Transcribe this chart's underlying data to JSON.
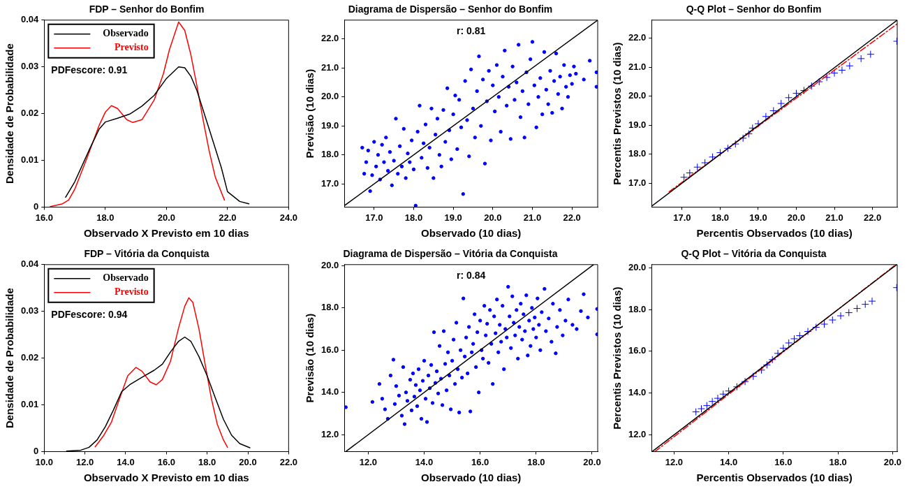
{
  "chart_data": [
    {
      "type": "line",
      "title": "FDP – Senhor do Bonfim",
      "xlabel": "Observado X Previsto em 10 dias",
      "ylabel": "Densidade de Probabilidade",
      "xlim": [
        16,
        24
      ],
      "xticks": [
        {
          "value": 16,
          "label": "16.0"
        },
        {
          "value": 18,
          "label": "18.0"
        },
        {
          "value": 20,
          "label": "20.0"
        },
        {
          "value": 22,
          "label": "22.0"
        },
        {
          "value": 24,
          "label": "24.0"
        }
      ],
      "ylim": [
        0,
        0.04
      ],
      "yticks": [
        0,
        0.01,
        0.02,
        0.03,
        0.04
      ],
      "legend": "top left",
      "annotations": [
        "PDFescore: 0.91"
      ],
      "series": [
        {
          "name": "Observado",
          "color": "#000000",
          "x": [
            16.7,
            17.0,
            17.5,
            17.8,
            18.0,
            18.4,
            18.8,
            19.2,
            19.6,
            20.0,
            20.4,
            20.6,
            20.8,
            21.0,
            21.4,
            21.8,
            22.0,
            22.4,
            22.7
          ],
          "values": [
            0.0021,
            0.0054,
            0.0126,
            0.0167,
            0.0182,
            0.019,
            0.0199,
            0.0216,
            0.0239,
            0.0275,
            0.03,
            0.0298,
            0.028,
            0.0249,
            0.0167,
            0.0084,
            0.0033,
            0.0012,
            0.0007
          ]
        },
        {
          "name": "Previsto",
          "color": "#ff0000",
          "x": [
            16.2,
            16.6,
            16.8,
            17.0,
            17.4,
            17.8,
            18.0,
            18.2,
            18.4,
            18.7,
            18.9,
            19.2,
            19.6,
            19.9,
            20.1,
            20.4,
            20.6,
            20.8,
            21.0,
            21.2,
            21.4,
            21.6,
            21.9
          ],
          "values": [
            0.0001,
            0.0007,
            0.0015,
            0.0038,
            0.0105,
            0.0175,
            0.0203,
            0.0217,
            0.0211,
            0.0187,
            0.0181,
            0.0187,
            0.0229,
            0.0285,
            0.0337,
            0.0396,
            0.0378,
            0.0326,
            0.0259,
            0.0187,
            0.012,
            0.0064,
            0.0015
          ]
        }
      ]
    },
    {
      "type": "scatter",
      "title": "Diagrama de Dispersão – Senhor do Bonfim",
      "xlabel": "Observado (10 dias)",
      "ylabel": "Previsão (10 dias)",
      "xlim": [
        16.25,
        22.65
      ],
      "xticks": [
        {
          "value": 17,
          "label": "17.0"
        },
        {
          "value": 18,
          "label": "18.0"
        },
        {
          "value": 19,
          "label": "19.0"
        },
        {
          "value": 20,
          "label": "20.0"
        },
        {
          "value": 21,
          "label": "21.0"
        },
        {
          "value": 22,
          "label": "22.0"
        }
      ],
      "ylim": [
        16.2,
        22.65
      ],
      "yticks": [
        {
          "value": 17,
          "label": "17.0"
        },
        {
          "value": 18,
          "label": "18.0"
        },
        {
          "value": 19,
          "label": "19.0"
        },
        {
          "value": 20,
          "label": "20.0"
        },
        {
          "value": 21,
          "label": "21.0"
        },
        {
          "value": 22,
          "label": "22.0"
        }
      ],
      "annotations": [
        "r: 0.81"
      ],
      "series": [
        {
          "marker": "circle",
          "color": "#0000ff",
          "x": [
            16.7,
            16.75,
            16.8,
            16.85,
            16.9,
            16.95,
            17.0,
            17.05,
            17.1,
            17.15,
            17.2,
            17.25,
            17.3,
            17.35,
            17.4,
            17.45,
            17.5,
            17.55,
            17.6,
            17.65,
            17.7,
            17.75,
            17.8,
            17.85,
            17.9,
            17.95,
            18.0,
            18.05,
            18.1,
            18.15,
            18.2,
            18.25,
            18.3,
            18.35,
            18.4,
            18.45,
            18.5,
            18.55,
            18.6,
            18.65,
            18.7,
            18.75,
            18.8,
            18.85,
            18.9,
            18.95,
            19.0,
            19.05,
            19.1,
            19.15,
            19.2,
            19.25,
            19.3,
            19.35,
            19.4,
            19.45,
            19.5,
            19.55,
            19.6,
            19.65,
            19.7,
            19.75,
            19.8,
            19.85,
            19.9,
            19.95,
            20.0,
            20.05,
            20.1,
            20.15,
            20.2,
            20.25,
            20.3,
            20.35,
            20.4,
            20.45,
            20.5,
            20.55,
            20.6,
            20.65,
            20.7,
            20.75,
            20.8,
            20.85,
            20.9,
            20.95,
            21.0,
            21.05,
            21.1,
            21.15,
            21.2,
            21.25,
            21.3,
            21.35,
            21.4,
            21.45,
            21.5,
            21.55,
            21.6,
            21.65,
            21.7,
            21.75,
            21.8,
            21.85,
            21.9,
            21.95,
            22.0,
            22.05,
            22.1,
            22.3,
            22.45,
            22.62,
            22.62
          ],
          "values": [
            18.25,
            17.35,
            17.75,
            18.15,
            16.75,
            17.3,
            18.45,
            17.6,
            18.0,
            17.15,
            18.35,
            17.75,
            18.6,
            17.45,
            18.1,
            16.95,
            17.8,
            19.25,
            17.35,
            18.3,
            17.6,
            18.9,
            17.2,
            18.05,
            17.75,
            18.5,
            17.5,
            16.25,
            18.8,
            19.7,
            17.9,
            18.4,
            19.05,
            17.55,
            18.25,
            19.6,
            17.2,
            18.7,
            19.25,
            18.0,
            17.6,
            19.55,
            18.45,
            20.3,
            18.85,
            17.85,
            19.4,
            20.05,
            18.2,
            19.9,
            18.95,
            16.65,
            20.55,
            19.2,
            17.95,
            20.95,
            19.6,
            18.6,
            20.2,
            21.4,
            19.0,
            20.6,
            17.7,
            19.85,
            20.9,
            18.5,
            20.4,
            19.5,
            21.1,
            20.0,
            18.8,
            20.7,
            21.6,
            19.7,
            20.35,
            18.55,
            21.05,
            19.9,
            20.5,
            21.8,
            19.3,
            20.2,
            18.6,
            20.85,
            19.75,
            21.3,
            21.9,
            20.4,
            18.95,
            20.0,
            20.65,
            19.4,
            21.55,
            20.25,
            19.75,
            20.9,
            19.45,
            20.55,
            21.5,
            20.1,
            20.7,
            19.6,
            21.1,
            20.35,
            20.0,
            20.75,
            20.45,
            21.05,
            20.8,
            20.6,
            21.25,
            20.85,
            20.35
          ]
        },
        {
          "type": "line",
          "color": "#000000",
          "x": [
            16.25,
            22.65
          ],
          "values": [
            16.25,
            22.65
          ]
        }
      ]
    },
    {
      "type": "scatter",
      "title": "Q-Q Plot – Senhor do Bonfim",
      "xlabel": "Percentis Observados (10 dias)",
      "ylabel": "Percentis Previstos (10 dias)",
      "xlim": [
        16.2,
        22.65
      ],
      "xticks": [
        {
          "value": 17,
          "label": "17.0"
        },
        {
          "value": 18,
          "label": "18.0"
        },
        {
          "value": 19,
          "label": "19.0"
        },
        {
          "value": 20,
          "label": "20.0"
        },
        {
          "value": 21,
          "label": "21.0"
        },
        {
          "value": 22,
          "label": "22.0"
        }
      ],
      "ylim": [
        16.17,
        22.63
      ],
      "yticks": [
        {
          "value": 17,
          "label": "17.0"
        },
        {
          "value": 18,
          "label": "18.0"
        },
        {
          "value": 19,
          "label": "19.0"
        },
        {
          "value": 20,
          "label": "20.0"
        },
        {
          "value": 21,
          "label": "21.0"
        },
        {
          "value": 22,
          "label": "22.0"
        }
      ],
      "series": [
        {
          "type": "line",
          "color": "#000000",
          "x": [
            16.2,
            22.65
          ],
          "values": [
            16.2,
            22.63
          ]
        },
        {
          "type": "line",
          "color": "#ff0000",
          "line_style": "dashed",
          "x": [
            16.66,
            22.65
          ],
          "values": [
            16.7,
            22.5
          ]
        },
        {
          "marker": "cross",
          "color": "#0000ff",
          "x": [
            17.05,
            17.2,
            17.4,
            17.6,
            17.8,
            18.0,
            18.2,
            18.4,
            18.6,
            18.75,
            18.85,
            19.0,
            19.2,
            19.4,
            19.6,
            19.8,
            20.0,
            20.2,
            20.4,
            20.6,
            20.8,
            21.0,
            21.2,
            21.4,
            21.7,
            21.95,
            22.64
          ],
          "values": [
            17.2,
            17.35,
            17.55,
            17.7,
            17.9,
            18.05,
            18.2,
            18.35,
            18.55,
            18.7,
            18.9,
            19.05,
            19.3,
            19.5,
            19.75,
            19.95,
            20.1,
            20.2,
            20.35,
            20.5,
            20.65,
            20.8,
            20.9,
            21.05,
            21.3,
            21.45,
            21.9
          ]
        }
      ]
    },
    {
      "type": "line",
      "title": "FDP – Vitória da Conquista",
      "xlabel": "Observado X Previsto em 10 dias",
      "ylabel": "Densidade de Probabilidade",
      "xlim": [
        10,
        22
      ],
      "xticks": [
        {
          "value": 10,
          "label": "10.0"
        },
        {
          "value": 12,
          "label": "12.0"
        },
        {
          "value": 14,
          "label": "14.0"
        },
        {
          "value": 16,
          "label": "16.0"
        },
        {
          "value": 18,
          "label": "18.0"
        },
        {
          "value": 20,
          "label": "20.0"
        },
        {
          "value": 22,
          "label": "22.0"
        }
      ],
      "ylim": [
        0,
        0.04
      ],
      "yticks": [
        0,
        0.01,
        0.02,
        0.03,
        0.04
      ],
      "legend": "top left",
      "annotations": [
        "PDFescore: 0.94"
      ],
      "series": [
        {
          "name": "Observado",
          "color": "#000000",
          "x": [
            11.1,
            11.8,
            12.2,
            12.6,
            13.0,
            13.4,
            13.8,
            14.2,
            14.8,
            15.4,
            15.8,
            16.2,
            16.6,
            16.9,
            17.2,
            17.6,
            18.0,
            18.4,
            18.8,
            19.2,
            19.6,
            20.1
          ],
          "values": [
            0.0001,
            0.0003,
            0.0009,
            0.0025,
            0.0053,
            0.0089,
            0.0128,
            0.0143,
            0.0159,
            0.0174,
            0.0187,
            0.0213,
            0.0236,
            0.0245,
            0.0236,
            0.0203,
            0.0162,
            0.0115,
            0.0069,
            0.0035,
            0.0017,
            0.0008
          ]
        },
        {
          "name": "Previsto",
          "color": "#ff0000",
          "x": [
            12.5,
            12.9,
            13.3,
            13.7,
            14.1,
            14.5,
            14.8,
            15.2,
            15.5,
            15.8,
            16.2,
            16.6,
            16.9,
            17.1,
            17.3,
            17.6,
            17.9,
            18.2,
            18.5,
            18.8,
            19.0
          ],
          "values": [
            0.001,
            0.0033,
            0.0063,
            0.0113,
            0.0162,
            0.018,
            0.0172,
            0.0149,
            0.0143,
            0.0154,
            0.0193,
            0.0265,
            0.0311,
            0.0329,
            0.0319,
            0.0262,
            0.0187,
            0.0115,
            0.0058,
            0.0025,
            0.0009
          ]
        }
      ]
    },
    {
      "type": "scatter",
      "title": "Diagrama de Dispersão – Vitória da Conquista",
      "xlabel": "Observado (10 dias)",
      "ylabel": "Previsão (10 dias)",
      "xlim": [
        11.15,
        20.2
      ],
      "xticks": [
        {
          "value": 12,
          "label": "12.0"
        },
        {
          "value": 14,
          "label": "14.0"
        },
        {
          "value": 16,
          "label": "16.0"
        },
        {
          "value": 18,
          "label": "18.0"
        },
        {
          "value": 20,
          "label": "20.0"
        }
      ],
      "ylim": [
        11.2,
        20.05
      ],
      "yticks": [
        {
          "value": 12,
          "label": "12.0"
        },
        {
          "value": 14,
          "label": "14.0"
        },
        {
          "value": 16,
          "label": "16.0"
        },
        {
          "value": 18,
          "label": "18.0"
        },
        {
          "value": 20,
          "label": "20.0"
        }
      ],
      "annotations": [
        "r: 0.84"
      ],
      "series": [
        {
          "marker": "circle",
          "color": "#0000ff",
          "x": [
            11.2,
            12.15,
            12.4,
            12.5,
            12.6,
            12.7,
            12.8,
            12.9,
            12.95,
            13.0,
            13.1,
            13.2,
            13.25,
            13.3,
            13.35,
            13.4,
            13.5,
            13.55,
            13.6,
            13.65,
            13.7,
            13.75,
            13.8,
            13.85,
            13.9,
            13.95,
            14.0,
            14.05,
            14.1,
            14.15,
            14.2,
            14.25,
            14.3,
            14.35,
            14.4,
            14.45,
            14.5,
            14.55,
            14.6,
            14.65,
            14.7,
            14.75,
            14.8,
            14.85,
            14.9,
            14.95,
            15.0,
            15.05,
            15.1,
            15.15,
            15.2,
            15.25,
            15.3,
            15.35,
            15.4,
            15.45,
            15.5,
            15.55,
            15.6,
            15.65,
            15.7,
            15.75,
            15.8,
            15.85,
            15.9,
            15.95,
            16.0,
            16.05,
            16.1,
            16.15,
            16.2,
            16.25,
            16.3,
            16.35,
            16.4,
            16.45,
            16.5,
            16.55,
            16.6,
            16.65,
            16.7,
            16.75,
            16.8,
            16.85,
            16.9,
            16.95,
            17.0,
            17.05,
            17.1,
            17.15,
            17.2,
            17.25,
            17.3,
            17.35,
            17.4,
            17.45,
            17.5,
            17.55,
            17.6,
            17.65,
            17.7,
            17.75,
            17.8,
            17.85,
            17.9,
            17.95,
            18.0,
            18.05,
            18.1,
            18.15,
            18.2,
            18.3,
            18.35,
            18.45,
            18.55,
            18.6,
            18.7,
            18.75,
            18.85,
            18.95,
            19.05,
            19.15,
            19.3,
            19.45,
            19.6,
            19.7,
            19.85,
            20.18,
            20.18
          ],
          "values": [
            13.3,
            13.55,
            14.4,
            13.7,
            13.2,
            12.75,
            14.8,
            15.55,
            13.45,
            14.3,
            13.85,
            12.9,
            15.2,
            12.5,
            14.0,
            13.6,
            14.6,
            13.15,
            14.9,
            13.8,
            14.35,
            13.35,
            15.1,
            14.1,
            12.75,
            14.55,
            15.5,
            13.7,
            12.6,
            14.8,
            14.2,
            15.3,
            13.5,
            16.85,
            14.45,
            15.0,
            13.95,
            16.2,
            14.65,
            13.4,
            16.9,
            15.35,
            14.1,
            15.9,
            14.8,
            13.2,
            15.5,
            16.5,
            14.4,
            17.3,
            15.1,
            13.05,
            16.0,
            14.7,
            18.45,
            15.7,
            16.6,
            14.9,
            17.1,
            13.1,
            15.9,
            16.3,
            17.7,
            15.2,
            16.85,
            14.0,
            17.4,
            16.0,
            15.6,
            18.1,
            16.7,
            17.25,
            15.4,
            17.9,
            16.3,
            14.4,
            17.6,
            16.8,
            18.4,
            15.9,
            17.2,
            16.4,
            18.1,
            15.1,
            17.0,
            16.6,
            19.0,
            17.6,
            16.1,
            18.55,
            17.3,
            16.7,
            17.9,
            15.6,
            17.1,
            18.2,
            16.5,
            17.7,
            16.9,
            18.6,
            15.75,
            17.4,
            16.2,
            18.0,
            17.0,
            17.55,
            16.6,
            18.45,
            17.2,
            16.0,
            17.8,
            18.9,
            16.9,
            17.5,
            16.4,
            18.2,
            15.85,
            17.1,
            17.9,
            16.7,
            17.4,
            18.4,
            17.2,
            17.0,
            17.85,
            18.65,
            17.55,
            17.95,
            16.75
          ]
        },
        {
          "type": "line",
          "color": "#000000",
          "x": [
            11.2,
            20.05
          ],
          "values": [
            11.2,
            20.05
          ]
        }
      ]
    },
    {
      "type": "scatter",
      "title": "Q-Q Plot – Vitória da Conquista",
      "xlabel": "Percentis Observados (10 dias)",
      "ylabel": "Percentis Previstos (10 dias)",
      "xlim": [
        11.18,
        20.17
      ],
      "xticks": [
        {
          "value": 12,
          "label": "12.0"
        },
        {
          "value": 14,
          "label": "14.0"
        },
        {
          "value": 16,
          "label": "16.0"
        },
        {
          "value": 18,
          "label": "18.0"
        },
        {
          "value": 20,
          "label": "20.0"
        }
      ],
      "ylim": [
        11.2,
        20.15
      ],
      "yticks": [
        {
          "value": 12,
          "label": "12.0"
        },
        {
          "value": 14,
          "label": "14.0"
        },
        {
          "value": 16,
          "label": "16.0"
        },
        {
          "value": 18,
          "label": "18.0"
        },
        {
          "value": 20,
          "label": "20.0"
        }
      ],
      "series": [
        {
          "type": "line",
          "color": "#000000",
          "x": [
            11.2,
            20.15
          ],
          "values": [
            11.2,
            20.15
          ]
        },
        {
          "type": "line",
          "color": "#ff0000",
          "line_style": "dashed",
          "x": [
            11.3,
            20.07
          ],
          "values": [
            11.2,
            20.1
          ]
        },
        {
          "marker": "cross",
          "color": "#0000ff",
          "x": [
            12.8,
            13.0,
            13.2,
            13.4,
            13.6,
            13.8,
            14.0,
            14.3,
            14.6,
            14.9,
            15.2,
            15.4,
            15.6,
            15.8,
            16.0,
            16.2,
            16.4,
            16.6,
            16.9,
            17.2,
            17.5,
            17.8,
            18.1,
            18.4,
            18.7,
            19.0,
            19.25,
            20.15
          ],
          "values": [
            13.1,
            13.25,
            13.4,
            13.6,
            13.75,
            13.95,
            14.1,
            14.3,
            14.55,
            14.8,
            15.1,
            15.35,
            15.6,
            15.9,
            16.15,
            16.4,
            16.6,
            16.75,
            16.95,
            17.15,
            17.3,
            17.5,
            17.7,
            17.85,
            18.05,
            18.25,
            18.4,
            19.05
          ]
        }
      ]
    }
  ]
}
